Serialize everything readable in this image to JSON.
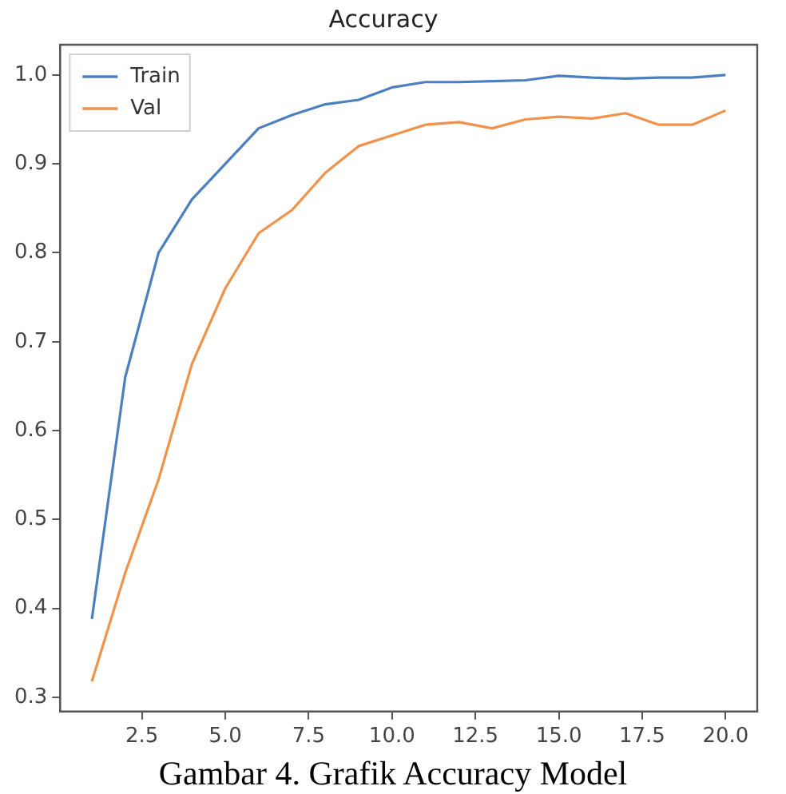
{
  "chart_data": {
    "type": "line",
    "title": "Accuracy",
    "annotations": [
      "Gambar 4. Grafik Accuracy Model"
    ],
    "x": [
      1,
      2,
      3,
      4,
      5,
      6,
      7,
      8,
      9,
      10,
      11,
      12,
      13,
      14,
      15,
      16,
      17,
      18,
      19,
      20
    ],
    "series": [
      {
        "name": "Train",
        "color": "#4c7fbf",
        "values": [
          0.388,
          0.66,
          0.8,
          0.86,
          0.9,
          0.94,
          0.955,
          0.967,
          0.972,
          0.986,
          0.992,
          0.992,
          0.993,
          0.994,
          0.999,
          0.997,
          0.996,
          0.997,
          0.997,
          1.0
        ]
      },
      {
        "name": "Val",
        "color": "#f0924a",
        "values": [
          0.318,
          0.44,
          0.545,
          0.675,
          0.76,
          0.822,
          0.848,
          0.89,
          0.92,
          0.932,
          0.944,
          0.947,
          0.94,
          0.95,
          0.953,
          0.951,
          0.957,
          0.944,
          0.944,
          0.96
        ]
      }
    ],
    "xlim": [
      0.05,
      20.95
    ],
    "xticks": [
      {
        "value": 2.5,
        "label": "2.5"
      },
      {
        "value": 5,
        "label": "5.0"
      },
      {
        "value": 7.5,
        "label": "7.5"
      },
      {
        "value": 10,
        "label": "10.0"
      },
      {
        "value": 12.5,
        "label": "12.5"
      },
      {
        "value": 15,
        "label": "15.0"
      },
      {
        "value": 17.5,
        "label": "17.5"
      },
      {
        "value": 20,
        "label": "20.0"
      }
    ],
    "ylim": [
      0.284,
      1.034
    ],
    "yticks": [
      0.3,
      {
        "value": 0.4,
        "label": "0.4"
      },
      {
        "value": 0.5,
        "label": "0.5"
      },
      {
        "value": 0.6,
        "label": "0.6"
      },
      {
        "value": 0.7,
        "label": "0.7"
      },
      {
        "value": 0.8,
        "label": "0.8"
      },
      {
        "value": 0.9,
        "label": "0.9"
      },
      {
        "value": 1.0,
        "label": "1.0"
      }
    ],
    "legend": "top left",
    "grid": false,
    "marker": "none",
    "line_style": "solid"
  }
}
